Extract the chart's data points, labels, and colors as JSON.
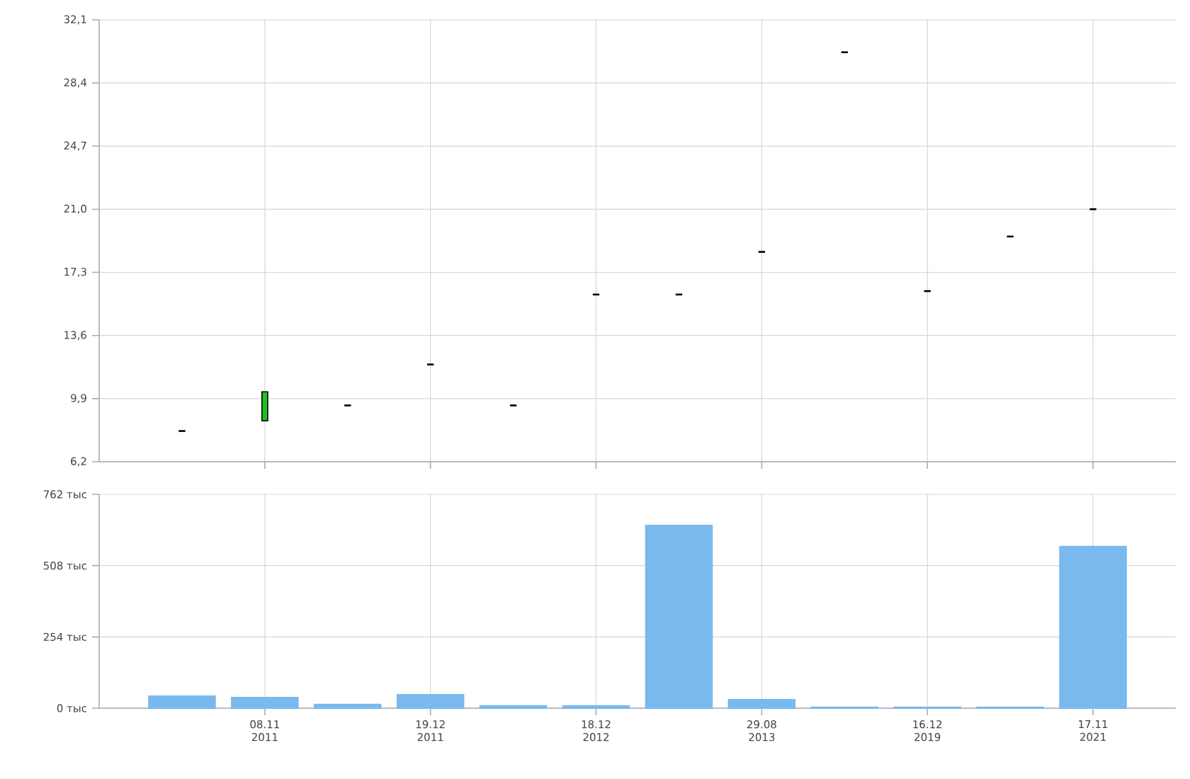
{
  "chart_data": [
    {
      "type": "candlestick",
      "categories": [
        null,
        null,
        null,
        null,
        null,
        null,
        null,
        null,
        null,
        null,
        null,
        null
      ],
      "ohlc": [
        [
          8.0,
          8.0,
          8.0,
          8.0
        ],
        [
          8.6,
          10.3,
          8.6,
          10.3
        ],
        [
          9.5,
          9.5,
          9.5,
          9.5
        ],
        [
          11.9,
          11.9,
          11.9,
          11.9
        ],
        [
          9.5,
          9.5,
          9.5,
          9.5
        ],
        [
          16.0,
          16.0,
          16.0,
          16.0
        ],
        [
          16.0,
          16.0,
          16.0,
          16.0
        ],
        [
          18.5,
          18.5,
          18.5,
          18.5
        ],
        [
          30.2,
          30.2,
          30.2,
          30.2
        ],
        [
          16.2,
          16.2,
          16.2,
          16.2
        ],
        [
          19.4,
          19.4,
          19.4,
          19.4
        ],
        [
          21.0,
          21.0,
          21.0,
          21.0
        ]
      ],
      "colors": [
        "#000000",
        "#22c022",
        "#000000",
        "#000000",
        "#000000",
        "#000000",
        "#000000",
        "#000000",
        "#000000",
        "#000000",
        "#000000",
        "#000000"
      ],
      "ylim": [
        6.2,
        32.1
      ],
      "yticks": [
        {
          "value": 6.2,
          "label": "6,2"
        },
        {
          "value": 9.9,
          "label": "9,9"
        },
        {
          "value": 13.6,
          "label": "13,6"
        },
        {
          "value": 17.3,
          "label": "17,3"
        },
        {
          "value": 21.0,
          "label": "21,0"
        },
        {
          "value": 24.7,
          "label": "24,7"
        },
        {
          "value": 28.4,
          "label": "28,4"
        },
        {
          "value": 32.1,
          "label": "32,1"
        }
      ],
      "grid": true,
      "tick_labels": "y"
    },
    {
      "type": "bar",
      "categories": [
        null,
        "08.11 2011",
        null,
        "19.12 2011",
        null,
        "18.12 2012",
        null,
        "29.08 2013",
        null,
        "16.12 2019",
        null,
        "17.11 2021"
      ],
      "values": [
        43,
        38,
        13,
        48,
        8,
        8,
        651,
        30,
        3,
        3,
        3,
        576
      ],
      "color": "#7ab9ee",
      "ylim": [
        0,
        762
      ],
      "yticks": [
        {
          "value": 0,
          "label": "0 тыс"
        },
        {
          "value": 254,
          "label": "254 тыс"
        },
        {
          "value": 508,
          "label": "508 тыс"
        },
        {
          "value": 762,
          "label": "762 тыс"
        }
      ],
      "grid": true
    }
  ]
}
